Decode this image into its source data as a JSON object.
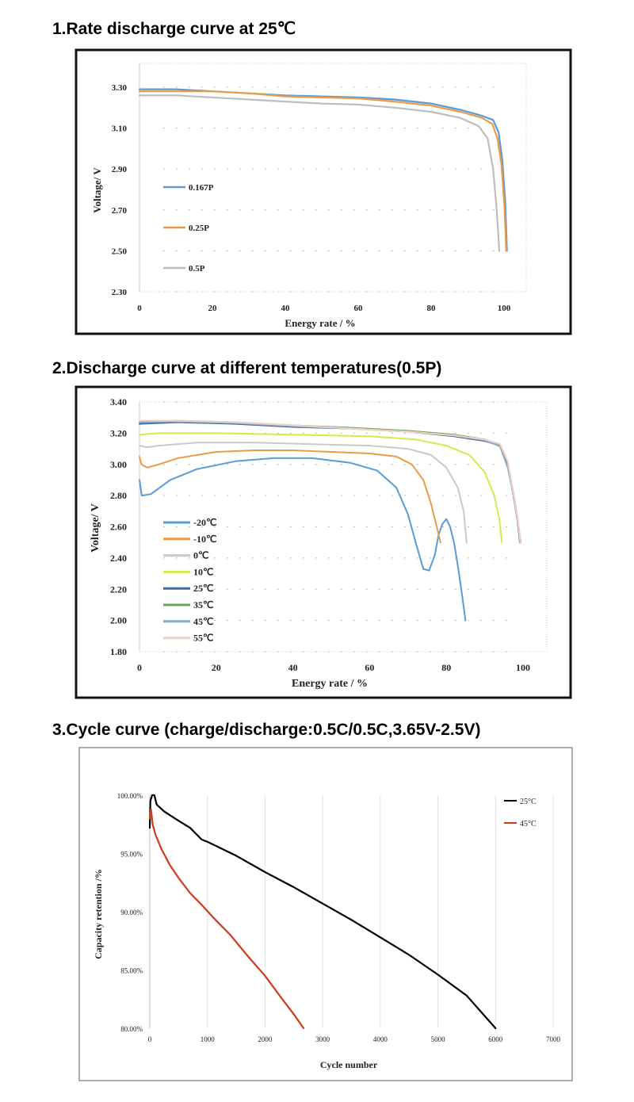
{
  "headings": {
    "h1": "1.Rate discharge curve at 25℃",
    "h2": "2.Discharge curve at different temperatures(0.5P)",
    "h3": "3.Cycle curve (charge/discharge:0.5C/0.5C,3.65V-2.5V)"
  },
  "chart_data": [
    {
      "type": "line",
      "xlabel": "Energy rate / %",
      "ylabel": "Voltage/ V",
      "xlim": [
        0,
        100
      ],
      "ylim": [
        2.3,
        3.3
      ],
      "xticks": [
        "0",
        "20",
        "40",
        "60",
        "80",
        "100"
      ],
      "yticks": [
        "3.30",
        "3.10",
        "2.90",
        "2.70",
        "2.50",
        "2.30"
      ],
      "legend_placement": "left",
      "series": [
        {
          "name": "0.167P",
          "color": "#5b9bd5",
          "points": [
            [
              0,
              3.29
            ],
            [
              10,
              3.29
            ],
            [
              20,
              3.28
            ],
            [
              30,
              3.27
            ],
            [
              40,
              3.26
            ],
            [
              50,
              3.255
            ],
            [
              60,
              3.25
            ],
            [
              70,
              3.24
            ],
            [
              80,
              3.22
            ],
            [
              88,
              3.19
            ],
            [
              94,
              3.16
            ],
            [
              97,
              3.14
            ],
            [
              98.5,
              3.08
            ],
            [
              99.5,
              2.95
            ],
            [
              100.3,
              2.75
            ],
            [
              100.8,
              2.5
            ]
          ]
        },
        {
          "name": "0.25P",
          "color": "#ed9a48",
          "points": [
            [
              0,
              3.28
            ],
            [
              10,
              3.28
            ],
            [
              20,
              3.28
            ],
            [
              30,
              3.27
            ],
            [
              40,
              3.255
            ],
            [
              50,
              3.25
            ],
            [
              60,
              3.245
            ],
            [
              70,
              3.23
            ],
            [
              80,
              3.21
            ],
            [
              88,
              3.18
            ],
            [
              94,
              3.15
            ],
            [
              96.8,
              3.12
            ],
            [
              98.2,
              3.05
            ],
            [
              99.3,
              2.92
            ],
            [
              100.1,
              2.72
            ],
            [
              100.6,
              2.5
            ]
          ]
        },
        {
          "name": "0.5P",
          "color": "#bdbdbd",
          "points": [
            [
              0,
              3.26
            ],
            [
              10,
              3.26
            ],
            [
              20,
              3.25
            ],
            [
              30,
              3.24
            ],
            [
              40,
              3.23
            ],
            [
              50,
              3.22
            ],
            [
              60,
              3.215
            ],
            [
              70,
              3.2
            ],
            [
              80,
              3.18
            ],
            [
              88,
              3.15
            ],
            [
              93,
              3.11
            ],
            [
              95.5,
              3.05
            ],
            [
              97,
              2.9
            ],
            [
              98,
              2.7
            ],
            [
              98.7,
              2.5
            ]
          ]
        }
      ]
    },
    {
      "type": "line",
      "xlabel": "Energy rate / %",
      "ylabel": "Voltage/ V",
      "xlim": [
        0,
        100
      ],
      "ylim": [
        1.8,
        3.4
      ],
      "xticks": [
        "0",
        "20",
        "40",
        "60",
        "80",
        "100"
      ],
      "yticks": [
        "3.40",
        "3.20",
        "3.00",
        "2.80",
        "2.60",
        "2.40",
        "2.20",
        "2.00",
        "1.80"
      ],
      "legend_placement": "left",
      "series": [
        {
          "name": "-20℃",
          "color": "#5b9bd5",
          "points": [
            [
              0,
              2.9
            ],
            [
              0.6,
              2.8
            ],
            [
              3,
              2.81
            ],
            [
              8,
              2.9
            ],
            [
              15,
              2.97
            ],
            [
              25,
              3.02
            ],
            [
              35,
              3.04
            ],
            [
              45,
              3.04
            ],
            [
              55,
              3.01
            ],
            [
              62,
              2.96
            ],
            [
              67,
              2.85
            ],
            [
              70,
              2.68
            ],
            [
              72,
              2.5
            ],
            [
              74,
              2.33
            ],
            [
              75.5,
              2.32
            ],
            [
              77,
              2.42
            ],
            [
              78,
              2.55
            ],
            [
              79,
              2.62
            ],
            [
              80,
              2.65
            ],
            [
              81,
              2.6
            ],
            [
              82,
              2.5
            ],
            [
              83,
              2.35
            ],
            [
              84,
              2.18
            ],
            [
              85,
              2.0
            ]
          ]
        },
        {
          "name": "-10℃",
          "color": "#ed9a48",
          "points": [
            [
              0,
              3.05
            ],
            [
              0.5,
              3.0
            ],
            [
              2,
              2.98
            ],
            [
              5,
              3.0
            ],
            [
              10,
              3.04
            ],
            [
              20,
              3.08
            ],
            [
              30,
              3.09
            ],
            [
              40,
              3.09
            ],
            [
              50,
              3.08
            ],
            [
              60,
              3.07
            ],
            [
              67,
              3.05
            ],
            [
              71,
              3.0
            ],
            [
              74,
              2.9
            ],
            [
              76,
              2.75
            ],
            [
              77.5,
              2.6
            ],
            [
              78.5,
              2.5
            ]
          ]
        },
        {
          "name": "0℃",
          "color": "#c9c9c9",
          "points": [
            [
              0,
              3.12
            ],
            [
              2,
              3.11
            ],
            [
              5,
              3.12
            ],
            [
              15,
              3.14
            ],
            [
              30,
              3.14
            ],
            [
              45,
              3.13
            ],
            [
              60,
              3.12
            ],
            [
              70,
              3.1
            ],
            [
              76,
              3.06
            ],
            [
              80,
              2.98
            ],
            [
              83,
              2.85
            ],
            [
              84.5,
              2.7
            ],
            [
              85.3,
              2.5
            ]
          ]
        },
        {
          "name": "10℃",
          "color": "#d7e84c",
          "points": [
            [
              0,
              3.19
            ],
            [
              5,
              3.2
            ],
            [
              20,
              3.2
            ],
            [
              40,
              3.19
            ],
            [
              60,
              3.18
            ],
            [
              72,
              3.16
            ],
            [
              80,
              3.12
            ],
            [
              86,
              3.06
            ],
            [
              90,
              2.95
            ],
            [
              92.5,
              2.8
            ],
            [
              93.8,
              2.65
            ],
            [
              94.5,
              2.5
            ]
          ]
        },
        {
          "name": "25℃",
          "color": "#3b6ea8",
          "points": [
            [
              0,
              3.26
            ],
            [
              10,
              3.27
            ],
            [
              25,
              3.26
            ],
            [
              40,
              3.24
            ],
            [
              55,
              3.23
            ],
            [
              70,
              3.21
            ],
            [
              82,
              3.18
            ],
            [
              90,
              3.15
            ],
            [
              94,
              3.12
            ],
            [
              96,
              3.0
            ],
            [
              97.5,
              2.8
            ],
            [
              98.5,
              2.65
            ],
            [
              99.2,
              2.5
            ]
          ]
        },
        {
          "name": "35℃",
          "color": "#6aa55a",
          "points": [
            [
              0,
              3.27
            ],
            [
              10,
              3.28
            ],
            [
              25,
              3.27
            ],
            [
              40,
              3.25
            ],
            [
              55,
              3.235
            ],
            [
              70,
              3.215
            ],
            [
              82,
              3.19
            ],
            [
              90,
              3.16
            ],
            [
              94,
              3.12
            ],
            [
              96,
              3.0
            ],
            [
              97.6,
              2.8
            ],
            [
              98.6,
              2.65
            ],
            [
              99.3,
              2.5
            ]
          ]
        },
        {
          "name": "45℃",
          "color": "#8fa9c9",
          "points": [
            [
              0,
              3.27
            ],
            [
              10,
              3.275
            ],
            [
              25,
              3.265
            ],
            [
              40,
              3.245
            ],
            [
              55,
              3.23
            ],
            [
              70,
              3.21
            ],
            [
              82,
              3.185
            ],
            [
              90,
              3.155
            ],
            [
              94,
              3.115
            ],
            [
              96,
              2.98
            ],
            [
              97.7,
              2.78
            ],
            [
              98.7,
              2.62
            ],
            [
              99.4,
              2.5
            ]
          ]
        },
        {
          "name": "55℃",
          "color": "#f0d0c6",
          "points": [
            [
              0,
              3.28
            ],
            [
              10,
              3.28
            ],
            [
              25,
              3.27
            ],
            [
              40,
              3.25
            ],
            [
              55,
              3.23
            ],
            [
              70,
              3.21
            ],
            [
              82,
              3.185
            ],
            [
              90,
              3.16
            ],
            [
              94,
              3.13
            ],
            [
              96,
              3.02
            ],
            [
              97.6,
              2.8
            ],
            [
              98.6,
              2.65
            ],
            [
              99.3,
              2.5
            ]
          ]
        }
      ]
    },
    {
      "type": "line",
      "xlabel": "Cycle number",
      "ylabel": "Capacity retention /%",
      "xlim": [
        0,
        7000
      ],
      "ylim": [
        80,
        100
      ],
      "xticks": [
        "0",
        "1000",
        "2000",
        "3000",
        "4000",
        "5000",
        "6000",
        "7000"
      ],
      "yticks": [
        "100.00%",
        "95.00%",
        "90.00%",
        "85.00%",
        "80.00%"
      ],
      "grid": "vertical",
      "legend_placement": "top-right",
      "series": [
        {
          "name": "25°C",
          "color": "#000000",
          "points": [
            [
              0,
              97.2
            ],
            [
              10,
              99.5
            ],
            [
              40,
              100.0
            ],
            [
              80,
              100.0
            ],
            [
              120,
              99.2
            ],
            [
              250,
              98.6
            ],
            [
              500,
              97.8
            ],
            [
              700,
              97.2
            ],
            [
              900,
              96.2
            ],
            [
              1000,
              96.0
            ],
            [
              1500,
              94.8
            ],
            [
              2000,
              93.4
            ],
            [
              2500,
              92.1
            ],
            [
              3000,
              90.7
            ],
            [
              3500,
              89.3
            ],
            [
              4000,
              87.8
            ],
            [
              4500,
              86.3
            ],
            [
              5000,
              84.6
            ],
            [
              5500,
              82.8
            ],
            [
              6000,
              80.0
            ]
          ]
        },
        {
          "name": "45°C",
          "color": "#d2391a",
          "points": [
            [
              0,
              98.0
            ],
            [
              20,
              98.8
            ],
            [
              50,
              97.5
            ],
            [
              100,
              96.6
            ],
            [
              200,
              95.4
            ],
            [
              350,
              94.0
            ],
            [
              500,
              92.9
            ],
            [
              700,
              91.6
            ],
            [
              900,
              90.6
            ],
            [
              1100,
              89.5
            ],
            [
              1400,
              88.0
            ],
            [
              1700,
              86.2
            ],
            [
              2000,
              84.5
            ],
            [
              2300,
              82.5
            ],
            [
              2500,
              81.2
            ],
            [
              2670,
              80.0
            ]
          ]
        }
      ]
    }
  ]
}
